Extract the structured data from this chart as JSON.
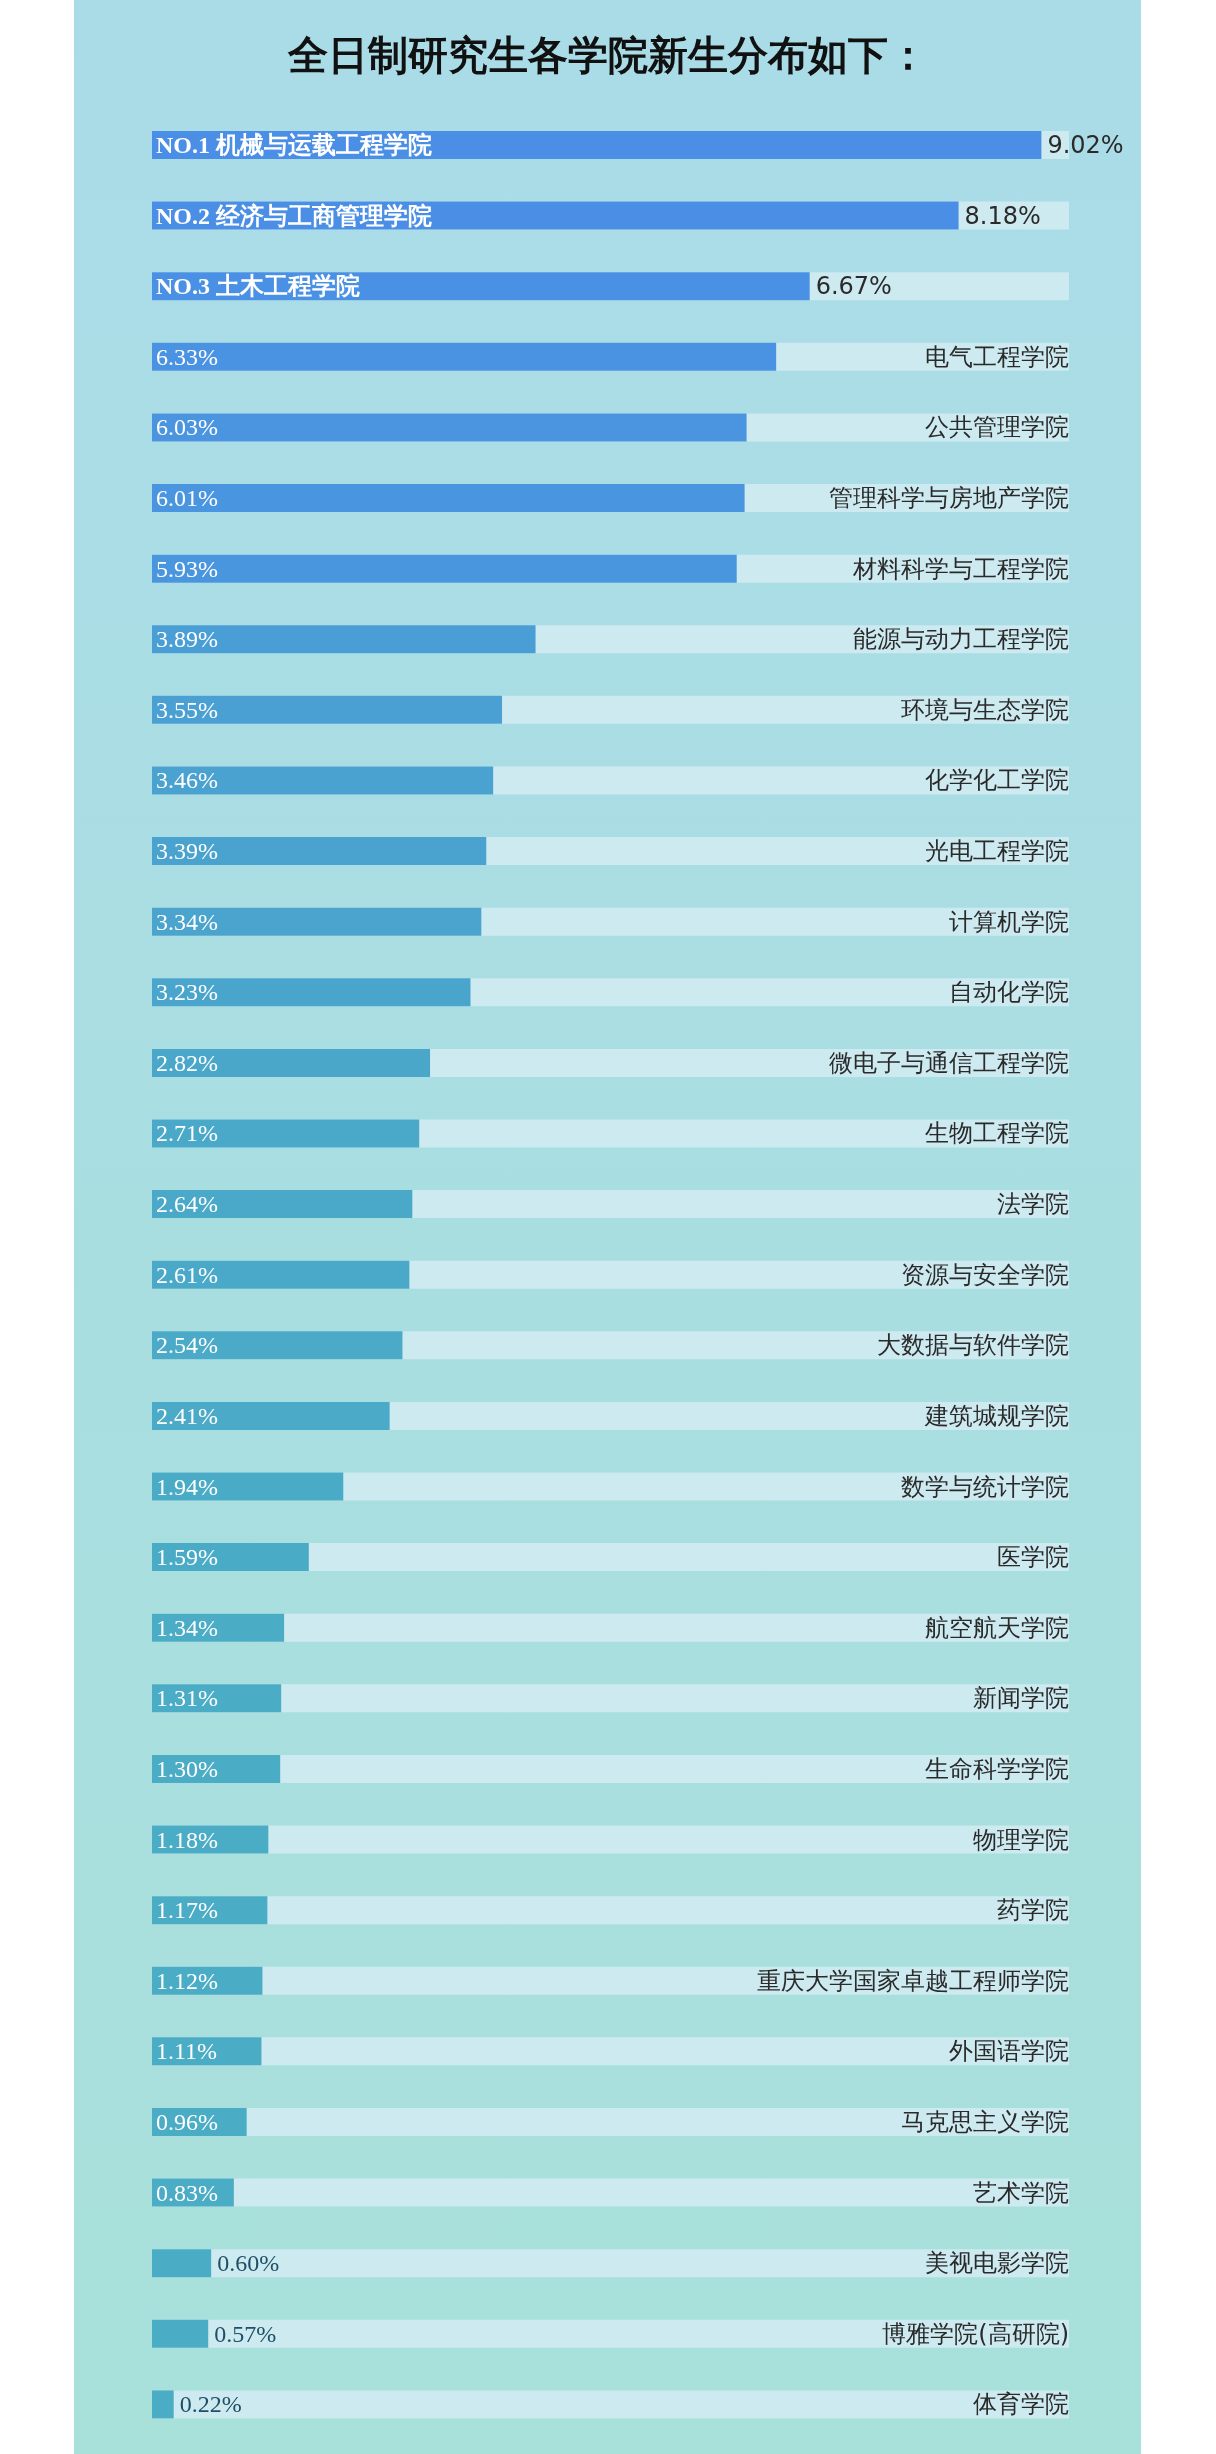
{
  "chart_data": {
    "type": "bar",
    "orientation": "horizontal",
    "title": "全日制研究生各学院新生分布如下：",
    "data_labels": true,
    "xlim": [
      0,
      9.3
    ],
    "categories": [
      "NO.1 机械与运载工程学院",
      "NO.2 经济与工商管理学院",
      "NO.3 土木工程学院",
      "电气工程学院",
      "公共管理学院",
      "管理科学与房地产学院",
      "材料科学与工程学院",
      "能源与动力工程学院",
      "环境与生态学院",
      "化学化工学院",
      "光电工程学院",
      "计算机学院",
      "自动化学院",
      "微电子与通信工程学院",
      "生物工程学院",
      "法学院",
      "资源与安全学院",
      "大数据与软件学院",
      "建筑城规学院",
      "数学与统计学院",
      "医学院",
      "航空航天学院",
      "新闻学院",
      "生命科学学院",
      "物理学院",
      "药学院",
      "重庆大学国家卓越工程师学院",
      "外国语学院",
      "马克思主义学院",
      "艺术学院",
      "美视电影学院",
      "博雅学院(高研院)",
      "体育学院"
    ],
    "values": [
      9.02,
      8.18,
      6.67,
      6.33,
      6.03,
      6.01,
      5.93,
      3.89,
      3.55,
      3.46,
      3.39,
      3.34,
      3.23,
      2.82,
      2.71,
      2.64,
      2.61,
      2.54,
      2.41,
      1.94,
      1.59,
      1.34,
      1.31,
      1.3,
      1.18,
      1.17,
      1.12,
      1.11,
      0.96,
      0.83,
      0.6,
      0.57,
      0.22
    ],
    "value_labels": [
      "9.02%",
      "8.18%",
      "6.67%",
      "6.33%",
      "6.03%",
      "6.01%",
      "5.93%",
      "3.89%",
      "3.55%",
      "3.46%",
      "3.39%",
      "3.34%",
      "3.23%",
      "2.82%",
      "2.71%",
      "2.64%",
      "2.61%",
      "2.54%",
      "2.41%",
      "1.94%",
      "1.59%",
      "1.34%",
      "1.31%",
      "1.30%",
      "1.18%",
      "1.17%",
      "1.12%",
      "1.11%",
      "0.96%",
      "0.83%",
      "0.60%",
      "0.57%",
      "0.22%"
    ],
    "colors": [
      "#4a8ee6",
      "#4a8ee6",
      "#4a90e4",
      "#4a92e2",
      "#4a94e0",
      "#4a95df",
      "#4a96de",
      "#4a9ed6",
      "#4aa0d2",
      "#4aa2d0",
      "#4aa3ce",
      "#4aa4cd",
      "#4aa5cc",
      "#4aa7ca",
      "#4aa8c9",
      "#4aa9c8",
      "#4aa9c8",
      "#4aaac7",
      "#4aaac7",
      "#4aabc6",
      "#4aabc6",
      "#4aacc5",
      "#4aacc5",
      "#4aacc5",
      "#4aacc5",
      "#4aacc5",
      "#4aacc5",
      "#4aacc5",
      "#4aacc5",
      "#4aacc5",
      "#4aacc5",
      "#4aacc5",
      "#4aacc5"
    ]
  }
}
